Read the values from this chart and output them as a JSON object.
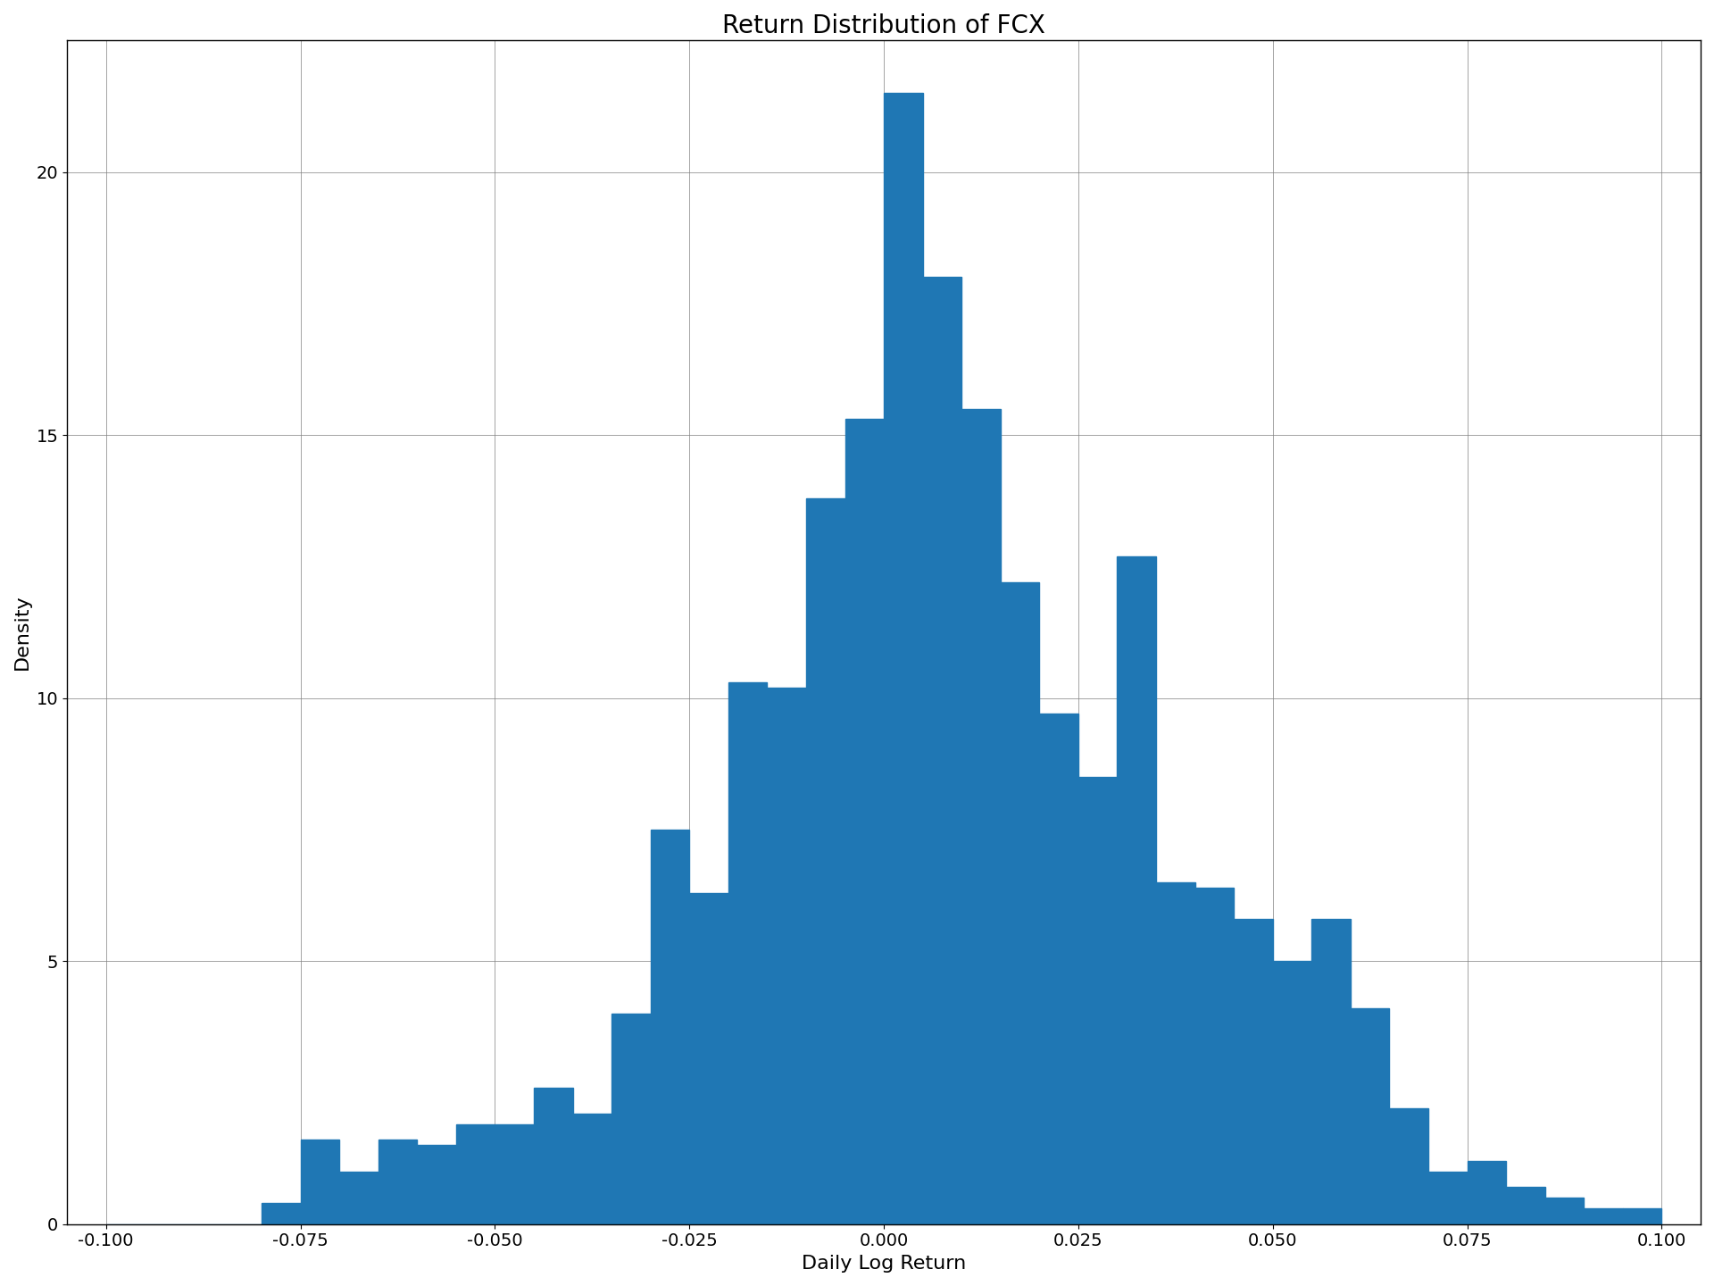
{
  "title": "Return Distribution of FCX",
  "xlabel": "Daily Log Return",
  "ylabel": "Density",
  "bar_color": "#1f77b4",
  "xlim": [
    -0.105,
    0.105
  ],
  "ylim": [
    0,
    22.5
  ],
  "yticks": [
    0,
    5,
    10,
    15,
    20
  ],
  "xticks": [
    -0.1,
    -0.075,
    -0.05,
    -0.025,
    0.0,
    0.025,
    0.05,
    0.075,
    0.1
  ],
  "xtick_labels": [
    "-0.100",
    "-0.075",
    "-0.050",
    "-0.025",
    "0.000",
    "0.025",
    "0.050",
    "0.075",
    "0.100"
  ],
  "grid": true,
  "bin_edges": [
    -0.1,
    -0.095,
    -0.09,
    -0.085,
    -0.08,
    -0.075,
    -0.07,
    -0.065,
    -0.06,
    -0.055,
    -0.05,
    -0.045,
    -0.04,
    -0.035,
    -0.03,
    -0.025,
    -0.02,
    -0.015,
    -0.01,
    -0.005,
    0.0,
    0.005,
    0.01,
    0.015,
    0.02,
    0.025,
    0.03,
    0.035,
    0.04,
    0.045,
    0.05,
    0.055,
    0.06,
    0.065,
    0.07,
    0.075,
    0.08,
    0.085,
    0.09,
    0.095,
    0.1
  ],
  "bar_heights": [
    0.0,
    0.0,
    0.0,
    0.0,
    0.4,
    1.6,
    1.0,
    1.6,
    1.5,
    1.9,
    1.9,
    2.6,
    2.1,
    4.0,
    7.5,
    6.3,
    10.3,
    10.2,
    13.8,
    15.3,
    21.5,
    18.0,
    15.5,
    12.2,
    9.7,
    8.5,
    12.7,
    6.5,
    6.4,
    5.8,
    5.0,
    5.8,
    4.1,
    2.2,
    1.0,
    1.2,
    0.7,
    0.5,
    0.3,
    0.3
  ],
  "title_fontsize": 20,
  "label_fontsize": 16,
  "tick_fontsize": 14,
  "figsize": [
    19.2,
    14.4
  ],
  "dpi": 100
}
